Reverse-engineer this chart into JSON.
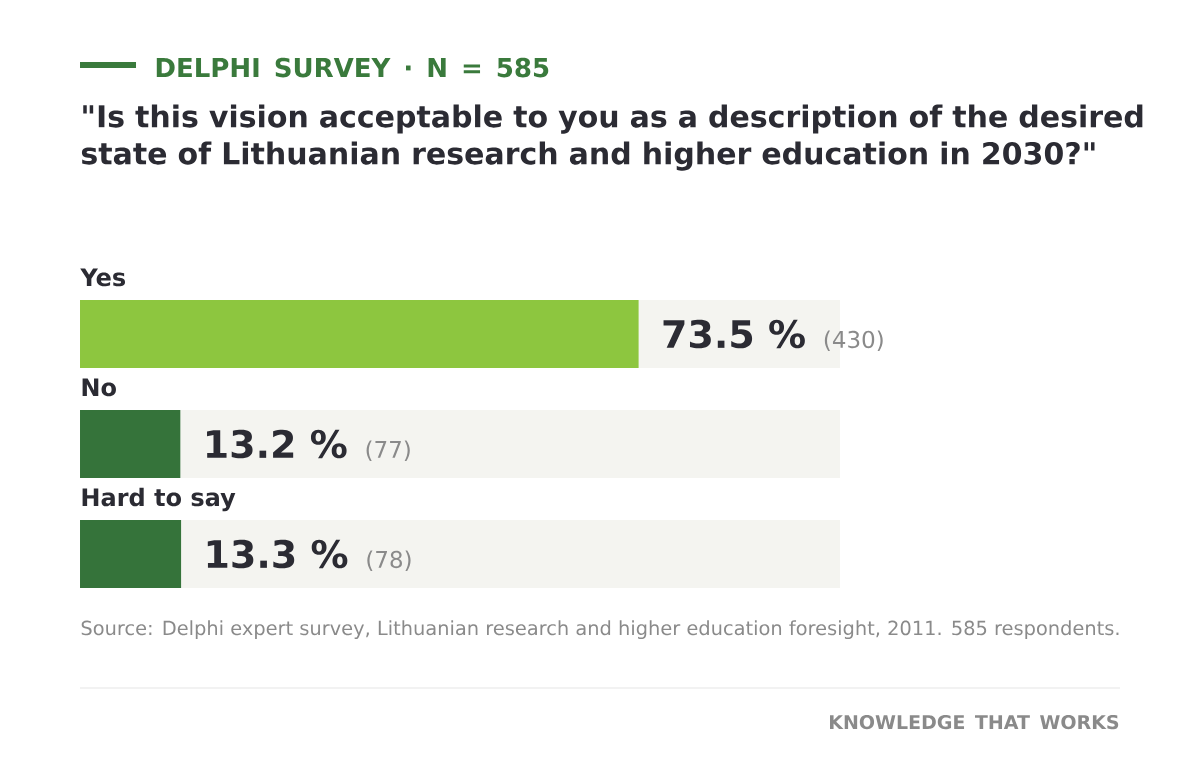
{
  "chart_data": {
    "type": "bar",
    "orientation": "horizontal",
    "title": "DELPHI SURVEY · N = 585",
    "subtitle": "\"Is this vision acceptable to you as a description of the desired state of Lithuanian research and higher education in 2030?\"",
    "categories": [
      "Yes",
      "No",
      "Hard to say"
    ],
    "values": [
      73.5,
      13.2,
      13.3
    ],
    "colors": [
      "#8dc63f",
      "#35733a",
      "#35733a"
    ],
    "value_labels": [
      "73.5 %",
      "13.2 %",
      "13.3 %"
    ],
    "xlim": [
      0,
      100
    ],
    "annotations": [
      "(430)",
      "(77)",
      "(78)",
      "Source: Delphi expert survey, Lithuanian research and higher education foresight, 2011. 585 respondents.",
      "KNOWLEDGE THAT WORKS"
    ]
  }
}
